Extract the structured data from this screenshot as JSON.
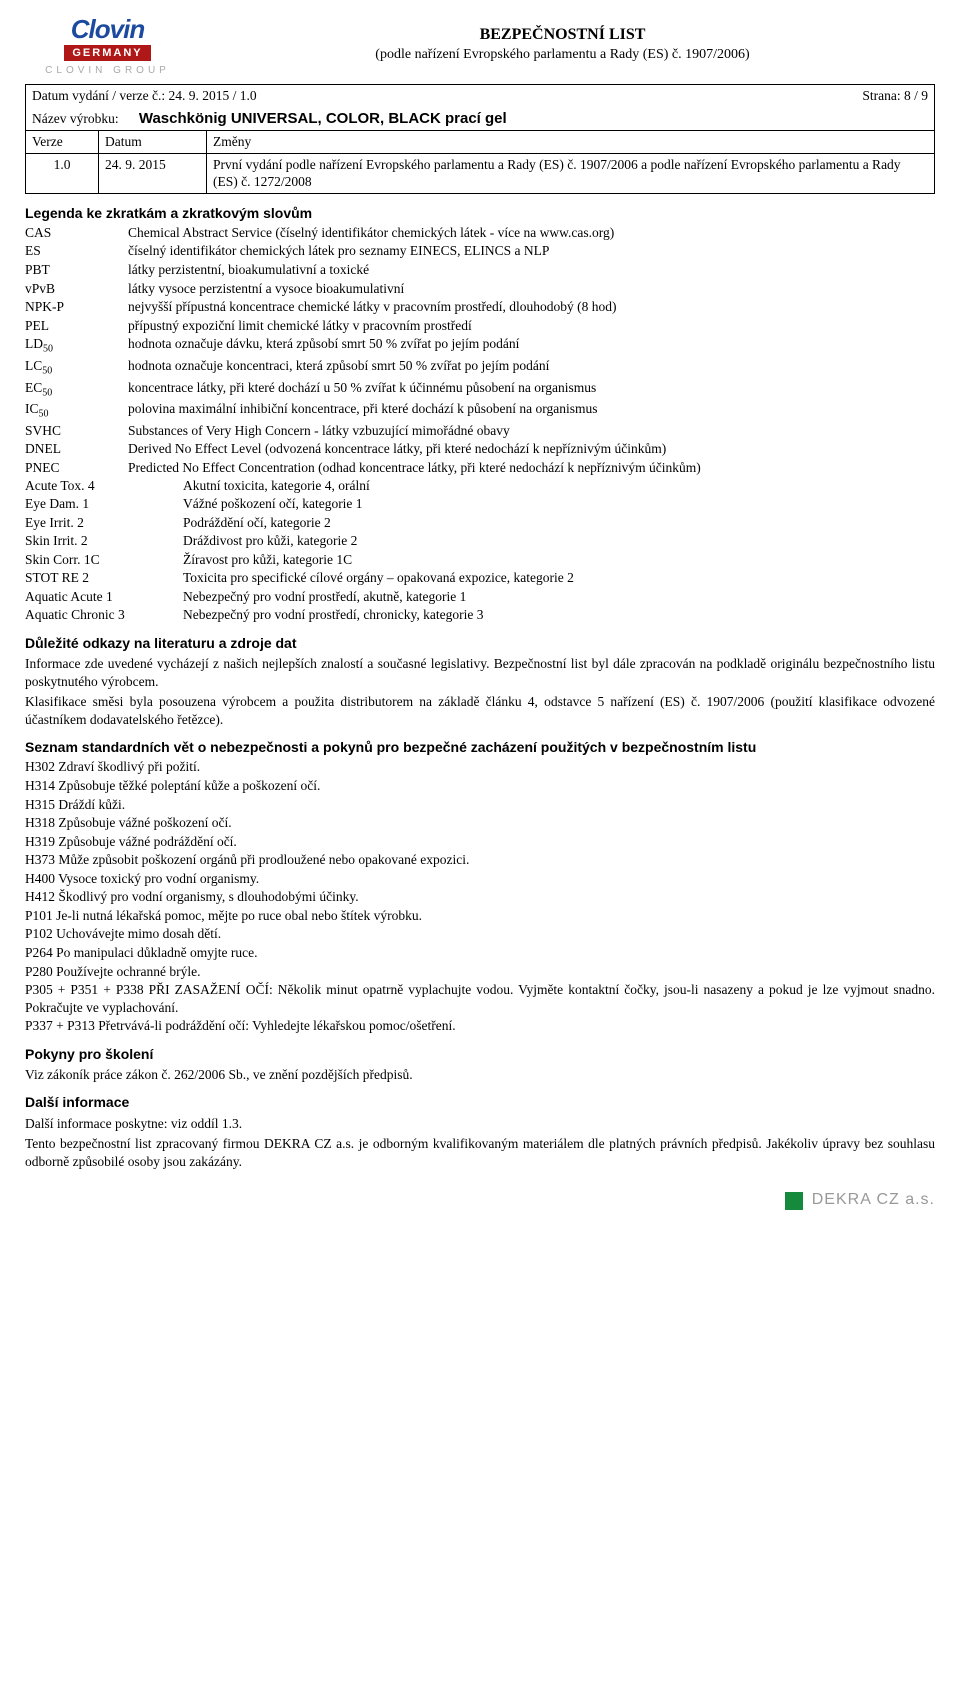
{
  "logo": {
    "main": "Clovin",
    "germany": "GERMANY",
    "group": "CLOVIN GROUP"
  },
  "header": {
    "title": "BEZPEČNOSTNÍ LIST",
    "subtitle": "(podle nařízení Evropského parlamentu a Rady (ES) č. 1907/2006)",
    "date_label": "Datum vydání / verze č.: 24. 9. 2015 / 1.0",
    "page": "Strana: 8 / 9",
    "product_label": "Název výrobku:",
    "product_name": "Waschkönig UNIVERSAL, COLOR, BLACK prací gel",
    "th_verze": "Verze",
    "th_datum": "Datum",
    "th_zmeny": "Změny",
    "row_verze": "1.0",
    "row_datum": "24. 9. 2015",
    "row_zmeny": "První vydání podle nařízení Evropského parlamentu a Rady (ES) č. 1907/2006 a podle nařízení Evropského parlamentu a Rady (ES) č. 1272/2008"
  },
  "legend": {
    "heading": "Legenda ke zkratkám a zkratkovým slovům",
    "abbrs": [
      {
        "c": "CAS",
        "d": "Chemical Abstract Service (číselný identifikátor chemických látek - více na www.cas.org)"
      },
      {
        "c": "ES",
        "d": "číselný identifikátor chemických látek pro seznamy EINECS, ELINCS a NLP"
      },
      {
        "c": "PBT",
        "d": "látky perzistentní, bioakumulativní a toxické"
      },
      {
        "c": "vPvB",
        "d": "látky vysoce perzistentní a vysoce bioakumulativní"
      },
      {
        "c": "NPK-P",
        "d": "nejvyšší přípustná koncentrace chemické látky v pracovním prostředí, dlouhodobý (8 hod)"
      },
      {
        "c": "PEL",
        "d": "přípustný expoziční limit chemické látky v pracovním prostředí"
      },
      {
        "c": "LD₅₀",
        "d": "hodnota označuje dávku, která způsobí smrt 50 % zvířat po jejím podání"
      },
      {
        "c": "LC₅₀",
        "d": "hodnota označuje koncentraci, která způsobí smrt 50 % zvířat po jejím podání"
      },
      {
        "c": "EC₅₀",
        "d": "koncentrace látky, při které dochází u 50 % zvířat k účinnému působení na organismus"
      },
      {
        "c": "IC₅₀",
        "d": "polovina maximální inhibiční koncentrace, při které dochází k působení na organismus"
      },
      {
        "c": "SVHC",
        "d": "Substances of Very High Concern - látky vzbuzující mimořádné obavy"
      },
      {
        "c": "DNEL",
        "d": "Derived No Effect Level (odvozená koncentrace látky, při které nedochází k nepříznivým účinkům)"
      },
      {
        "c": "PNEC",
        "d": "Predicted No Effect Concentration (odhad koncentrace látky, při které nedochází k nepříznivým účinkům)"
      }
    ],
    "cats": [
      {
        "c": "Acute Tox. 4",
        "d": "Akutní toxicita, kategorie 4, orální"
      },
      {
        "c": "Eye Dam. 1",
        "d": "Vážné poškození očí, kategorie 1"
      },
      {
        "c": "Eye Irrit. 2",
        "d": "Podráždění očí, kategorie 2"
      },
      {
        "c": "Skin Irrit. 2",
        "d": "Dráždivost pro kůži, kategorie 2"
      },
      {
        "c": "Skin Corr. 1C",
        "d": "Žíravost pro kůži, kategorie 1C"
      },
      {
        "c": "STOT RE 2",
        "d": "Toxicita pro specifické cílové orgány – opakovaná expozice, kategorie 2"
      },
      {
        "c": "Aquatic Acute 1",
        "d": "Nebezpečný pro vodní prostředí, akutně, kategorie 1"
      },
      {
        "c": "Aquatic Chronic 3",
        "d": "Nebezpečný pro vodní prostředí, chronicky, kategorie 3"
      }
    ]
  },
  "lit": {
    "heading": "Důležité odkazy na literaturu a zdroje dat",
    "p1": "Informace zde uvedené vycházejí z našich nejlepších znalostí a současné legislativy. Bezpečnostní list byl dále zpracován na podkladě originálu bezpečnostního listu poskytnutého výrobcem.",
    "p2": "Klasifikace směsi byla posouzena výrobcem a použita distributorem na základě článku 4, odstavce 5 nařízení (ES) č. 1907/2006 (použití klasifikace odvozené účastníkem dodavatelského řetězce)."
  },
  "hazard": {
    "heading": "Seznam standardních vět o nebezpečnosti a pokynů pro bezpečné zacházení použitých v bezpečnostním listu",
    "lines": [
      "H302 Zdraví škodlivý při požití.",
      "H314 Způsobuje těžké poleptání kůže a poškození očí.",
      "H315 Dráždí kůži.",
      "H318 Způsobuje vážné poškození očí.",
      "H319 Způsobuje vážné podráždění očí.",
      "H373 Může způsobit poškození orgánů při prodloužené nebo opakované expozici.",
      "H400 Vysoce toxický pro vodní organismy.",
      "H412 Škodlivý pro vodní organismy, s dlouhodobými účinky.",
      "P101 Je-li nutná lékařská pomoc, mějte po ruce obal nebo štítek výrobku.",
      "P102 Uchovávejte mimo dosah dětí.",
      "P264 Po manipulaci důkladně omyjte ruce.",
      "P280 Používejte ochranné brýle.",
      "P305 + P351 + P338 PŘI ZASAŽENÍ OČÍ: Několik minut opatrně vyplachujte vodou. Vyjměte kontaktní čočky, jsou-li nasazeny a pokud je lze vyjmout snadno. Pokračujte ve vyplachování.",
      "P337 + P313 Přetrvává-li podráždění očí: Vyhledejte lékařskou pomoc/ošetření."
    ]
  },
  "training": {
    "heading": "Pokyny pro školení",
    "text": "Viz zákoník práce zákon č. 262/2006 Sb., ve znění pozdějších předpisů."
  },
  "further": {
    "heading": "Další informace",
    "p1": "Další informace poskytne: viz oddíl 1.3.",
    "p2": "Tento bezpečnostní list zpracovaný firmou DEKRA CZ a.s. je odborným kvalifikovaným materiálem dle platných právních předpisů. Jakékoliv úpravy bez souhlasu odborně způsobilé osoby jsou zakázány."
  },
  "footer": {
    "text": "DEKRA CZ a.s."
  }
}
